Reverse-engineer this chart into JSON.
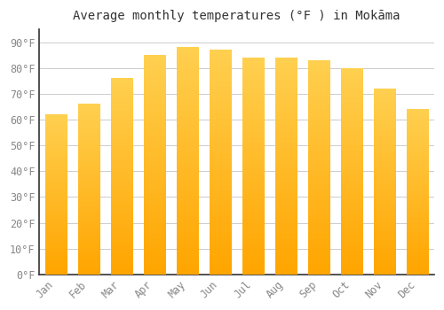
{
  "title": "Average monthly temperatures (°F ) in Mokāma",
  "months": [
    "Jan",
    "Feb",
    "Mar",
    "Apr",
    "May",
    "Jun",
    "Jul",
    "Aug",
    "Sep",
    "Oct",
    "Nov",
    "Dec"
  ],
  "values": [
    62,
    66,
    76,
    85,
    88,
    87,
    84,
    84,
    83,
    80,
    72,
    64
  ],
  "bar_color_top": "#FFD050",
  "bar_color_bottom": "#FFA500",
  "background_color": "#FFFFFF",
  "grid_color": "#CCCCCC",
  "text_color": "#888888",
  "spine_color": "#333333",
  "ylim": [
    0,
    95
  ],
  "yticks": [
    0,
    10,
    20,
    30,
    40,
    50,
    60,
    70,
    80,
    90
  ],
  "title_fontsize": 10,
  "tick_fontsize": 8.5,
  "bar_width": 0.65
}
